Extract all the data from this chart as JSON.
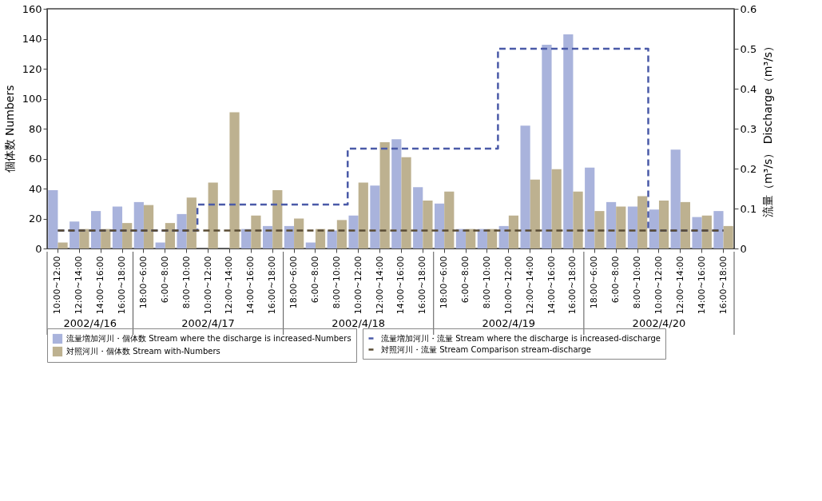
{
  "chart_data": {
    "type": "bar",
    "ylabel": "個体数 Numbers",
    "y2label": "流量（m³/s） Discharge（m³/s）",
    "categories": [
      "10:00~12:00",
      "12:00~14:00",
      "14:00~16:00",
      "16:00~18:00",
      "18:00~6:00",
      "6:00~8:00",
      "8:00~10:00",
      "10:00~12:00",
      "12:00~14:00",
      "14:00~16:00",
      "16:00~18:00",
      "18:00~6:00",
      "6:00~8:00",
      "8:00~10:00",
      "10:00~12:00",
      "12:00~14:00",
      "14:00~16:00",
      "16:00~18:00",
      "18:00~6:00",
      "6:00~8:00",
      "8:00~10:00",
      "10:00~12:00",
      "12:00~14:00",
      "14:00~16:00",
      "16:00~18:00",
      "18:00~6:00",
      "6:00~8:00",
      "8:00~10:00",
      "10:00~12:00",
      "12:00~14:00",
      "14:00~16:00",
      "16:00~18:00"
    ],
    "series": [
      {
        "name": "流量増加河川・個体数 Stream where the discharge is increased-Numbers",
        "color": "#a9b3dc",
        "values": [
          39,
          18,
          25,
          28,
          31,
          4,
          23,
          0,
          0,
          13,
          15,
          15,
          4,
          12,
          22,
          42,
          73,
          41,
          30,
          13,
          13,
          15,
          82,
          136,
          143,
          54,
          31,
          28,
          26,
          66,
          21,
          25
        ]
      },
      {
        "name": "対照河川・個体数 Stream with-Numbers",
        "color": "#bdb190",
        "values": [
          4,
          13,
          13,
          17,
          29,
          17,
          34,
          44,
          91,
          22,
          39,
          20,
          13,
          19,
          44,
          71,
          61,
          32,
          38,
          13,
          13,
          22,
          46,
          53,
          38,
          25,
          28,
          35,
          32,
          31,
          22,
          15
        ]
      },
      {
        "name": "流量増加河川・流量 Stream where the discharge is increased-discharge",
        "type": "step",
        "axis": "y2",
        "color": "#4a5aa8",
        "line_style": "dashed",
        "values": [
          0.045,
          0.045,
          0.045,
          0.045,
          0.045,
          0.045,
          0.045,
          0.11,
          0.11,
          0.11,
          0.11,
          0.11,
          0.11,
          0.11,
          0.25,
          0.25,
          0.25,
          0.25,
          0.25,
          0.25,
          0.25,
          0.5,
          0.5,
          0.5,
          0.5,
          0.5,
          0.5,
          0.5,
          0.045,
          0.045,
          0.045,
          0.045
        ]
      },
      {
        "name": "対照河川・流量 Stream Comparison stream-discharge",
        "type": "line",
        "axis": "y2",
        "color": "#5a4c34",
        "line_style": "dashed",
        "values": [
          0.045,
          0.045,
          0.045,
          0.045,
          0.045,
          0.045,
          0.045,
          0.045,
          0.045,
          0.045,
          0.045,
          0.045,
          0.045,
          0.045,
          0.045,
          0.045,
          0.045,
          0.045,
          0.045,
          0.045,
          0.045,
          0.045,
          0.045,
          0.045,
          0.045,
          0.045,
          0.045,
          0.045,
          0.045,
          0.045,
          0.045,
          0.045
        ]
      }
    ],
    "ylim": [
      0,
      160
    ],
    "yticks": [
      0,
      20,
      40,
      60,
      80,
      100,
      120,
      140,
      160
    ],
    "y2lim": [
      0,
      0.6
    ],
    "y2ticks": [
      0,
      0.1,
      0.2,
      0.3,
      0.4,
      0.5,
      0.6
    ],
    "annotations": [
      "2002/4/16",
      "2002/4/17",
      "2002/4/18",
      "2002/4/19",
      "2002/4/20"
    ],
    "legend": "bottom",
    "grid": false
  }
}
